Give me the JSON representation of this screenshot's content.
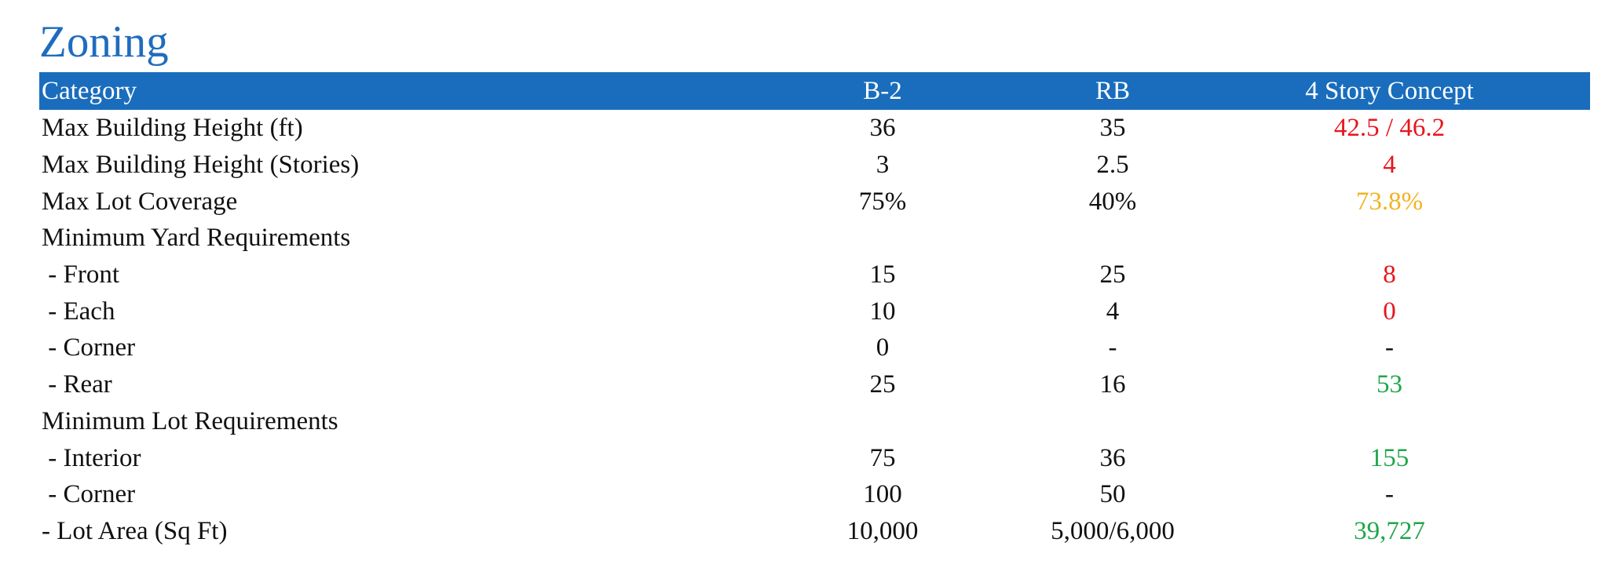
{
  "title": "Zoning",
  "colors": {
    "header_bg": "#1a6dbd",
    "title": "#1f6cbf",
    "red": "#e8141c",
    "amber": "#f0b323",
    "green": "#1fa64a",
    "text": "#111111"
  },
  "headers": [
    "Category",
    "B-2",
    "RB",
    "4 Story Concept"
  ],
  "rows": [
    {
      "label": "Max Building Height (ft)",
      "b2": "36",
      "rb": "35",
      "concept": "42.5 / 46.2",
      "concept_color": "#e8141c"
    },
    {
      "label": "Max Building Height (Stories)",
      "b2": "3",
      "rb": "2.5",
      "concept": "4",
      "concept_color": "#e8141c"
    },
    {
      "label": "Max Lot Coverage",
      "b2": "75%",
      "rb": "40%",
      "concept": "73.8%",
      "concept_color": "#f0b323"
    },
    {
      "label": "Minimum Yard Requirements",
      "b2": "",
      "rb": "",
      "concept": "",
      "concept_color": "#111111"
    },
    {
      "label": " - Front",
      "b2": "15",
      "rb": "25",
      "concept": "8",
      "concept_color": "#e8141c"
    },
    {
      "label": " - Each",
      "b2": "10",
      "rb": "4",
      "concept": "0",
      "concept_color": "#e8141c"
    },
    {
      "label": " - Corner",
      "b2": "0",
      "rb": "-",
      "concept": "-",
      "concept_color": "#111111"
    },
    {
      "label": " - Rear",
      "b2": "25",
      "rb": "16",
      "concept": "53",
      "concept_color": "#1fa64a"
    },
    {
      "label": "Minimum Lot Requirements",
      "b2": "",
      "rb": "",
      "concept": "",
      "concept_color": "#111111"
    },
    {
      "label": " - Interior",
      "b2": "75",
      "rb": "36",
      "concept": "155",
      "concept_color": "#1fa64a"
    },
    {
      "label": " - Corner",
      "b2": "100",
      "rb": "50",
      "concept": "-",
      "concept_color": "#111111"
    },
    {
      "label": "- Lot Area (Sq Ft)",
      "b2": "10,000",
      "rb": "5,000/6,000",
      "concept": "39,727",
      "concept_color": "#1fa64a"
    }
  ]
}
